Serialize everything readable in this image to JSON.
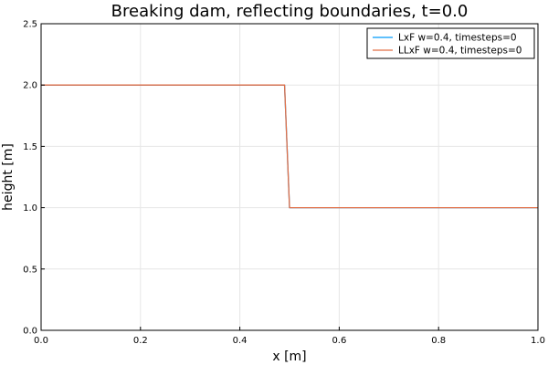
{
  "chart_data": {
    "type": "line",
    "title": "Breaking dam, reflecting boundaries, t=0.0",
    "xlabel": "x [m]",
    "ylabel": "height [m]",
    "xlim": [
      0.0,
      1.0
    ],
    "ylim": [
      0.0,
      2.5
    ],
    "xticks": [
      0.0,
      0.2,
      0.4,
      0.6,
      0.8,
      1.0
    ],
    "xtick_labels": [
      "0.0",
      "0.2",
      "0.4",
      "0.6",
      "0.8",
      "1.0"
    ],
    "yticks": [
      0.0,
      0.5,
      1.0,
      1.5,
      2.0,
      2.5
    ],
    "ytick_labels": [
      "0.0",
      "0.5",
      "1.0",
      "1.5",
      "2.0",
      "2.5"
    ],
    "grid": true,
    "legend_position": "top-right",
    "series": [
      {
        "name": "LxF w=0.4, timesteps=0",
        "color": "#009AFA",
        "x": [
          0.0,
          0.49,
          0.495,
          0.5,
          1.0
        ],
        "y": [
          2.0,
          2.0,
          1.5,
          1.0,
          1.0
        ]
      },
      {
        "name": "LLxF w=0.4, timesteps=0",
        "color": "#E26F46",
        "x": [
          0.0,
          0.49,
          0.495,
          0.5,
          1.0
        ],
        "y": [
          2.0,
          2.0,
          1.5,
          1.0,
          1.0
        ]
      }
    ]
  }
}
